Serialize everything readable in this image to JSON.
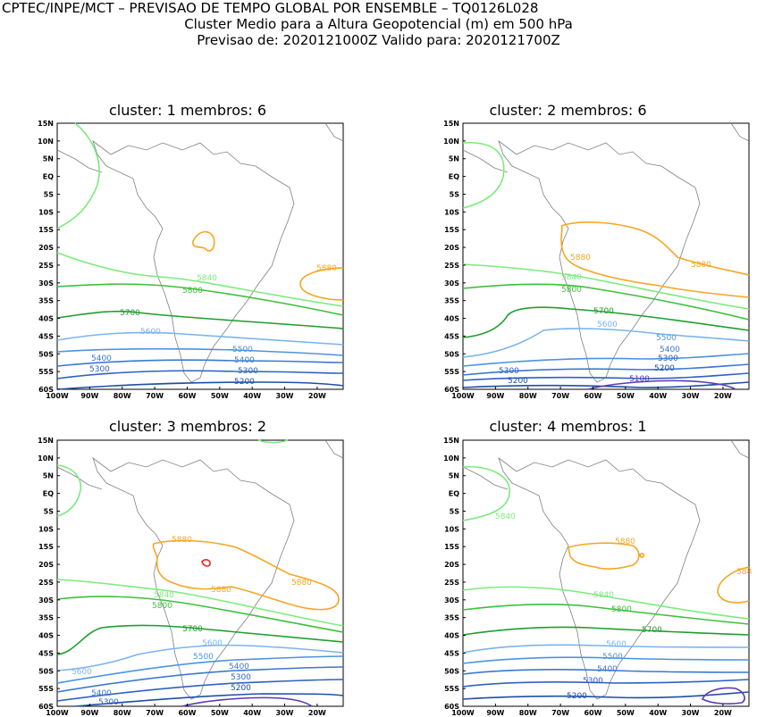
{
  "header": {
    "line1": "CPTEC/INPE/MCT – PREVISAO DE TEMPO GLOBAL POR ENSEMBLE – TQ0126L028",
    "line2": "Cluster Medio para a Altura Geopotencial (m) em 500 hPa",
    "line3": "Previsao de: 2020121000Z    Valido para: 2020121700Z"
  },
  "axes": {
    "lat_labels": [
      "15N",
      "10N",
      "5N",
      "EQ",
      "5S",
      "10S",
      "15S",
      "20S",
      "25S",
      "30S",
      "35S",
      "40S",
      "45S",
      "50S",
      "55S",
      "60S"
    ],
    "lon_labels": [
      "100W",
      "90W",
      "80W",
      "70W",
      "60W",
      "50W",
      "40W",
      "30W",
      "20W"
    ]
  },
  "colors": {
    "c5100": "#5a3ab5",
    "c5200": "#1f4fa8",
    "c5300": "#2f62c0",
    "c5400": "#3a78d2",
    "c5500": "#4d93e0",
    "c5600": "#7ab4ef",
    "c5700": "#1e9e2e",
    "c5800": "#3cc03c",
    "c5840": "#7deb7d",
    "c5880": "#f5a623",
    "c5920": "#e8231c",
    "coast": "#808080"
  },
  "panels": [
    {
      "title": "cluster: 1   membros: 6",
      "labels": {
        "l5880": "5880",
        "l5840": "5840",
        "l5800": "5800",
        "l5700": "5700",
        "l5600": "5600",
        "l5500": "5500",
        "l5400a": "5400",
        "l5400b": "5400",
        "l5300a": "5300",
        "l5300b": "5300",
        "l5200": "5200"
      }
    },
    {
      "title": "cluster: 2   membros: 6",
      "labels": {
        "l5880a": "5880",
        "l5880b": "5880",
        "l5840": "5840",
        "l5800": "5800",
        "l5700": "5700",
        "l5600": "5600",
        "l5500": "5500",
        "l5400": "5400",
        "l5300a": "5300",
        "l5300b": "5300",
        "l5200a": "5200",
        "l5200b": "5200",
        "l5100": "5100"
      }
    },
    {
      "title": "cluster: 3   membros: 2",
      "labels": {
        "l5880a": "5880",
        "l5880b": "5880",
        "l5880c": "5880",
        "l5840": "5840",
        "l5800": "5800",
        "l5700": "5700",
        "l5600a": "5600",
        "l5600b": "5600",
        "l5500": "5500",
        "l5400a": "5400",
        "l5400b": "5400",
        "l5300a": "5300",
        "l5300b": "5300",
        "l5200": "5200"
      }
    },
    {
      "title": "cluster: 4   membros: 1",
      "labels": {
        "l5880a": "5880",
        "l5880b": "588",
        "l5840a": "5840",
        "l5840b": "5840",
        "l5800": "5800",
        "l5700": "5700",
        "l5600": "5600",
        "l5500": "5500",
        "l5400": "5400",
        "l5300": "5300",
        "l5200": "5200"
      }
    }
  ]
}
